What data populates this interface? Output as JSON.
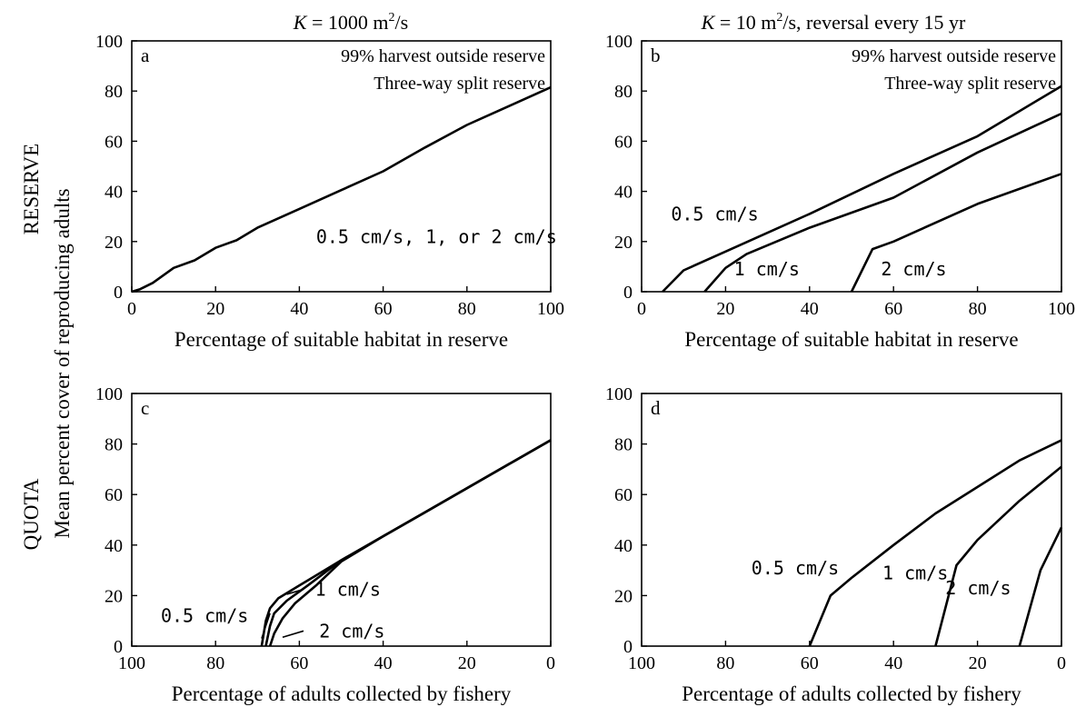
{
  "col_titles": {
    "left": {
      "italic": "K",
      "rest": " = 1000 m",
      "sup": "2",
      "tail": "/s"
    },
    "right": {
      "italic": "K",
      "rest": " = 10 m",
      "sup": "2",
      "tail": "/s, reversal every 15 yr"
    }
  },
  "row_titles": {
    "top": "RESERVE",
    "bottom": "QUOTA"
  },
  "ylabel": "Mean percent cover of reproducing adults",
  "chart_data": [
    {
      "id": "a",
      "type": "line",
      "panel_label": "a",
      "annotations": [
        "99% harvest outside reserve",
        "Three-way split reserve"
      ],
      "xlabel": "Percentage of suitable habitat in reserve",
      "xlim": [
        0,
        100
      ],
      "ylim": [
        0,
        100
      ],
      "xticks": [
        0,
        20,
        40,
        60,
        80,
        100
      ],
      "yticks": [
        0,
        20,
        40,
        60,
        80,
        100
      ],
      "series": [
        {
          "name": "0.5 cm/s, 1, or 2 cm/s",
          "x": [
            0,
            2,
            5,
            10,
            15,
            20,
            25,
            30,
            40,
            50,
            60,
            70,
            80,
            90,
            100
          ],
          "y": [
            0,
            1,
            3.5,
            9.5,
            12.5,
            17.5,
            20.5,
            25.5,
            33,
            40.5,
            48,
            57.5,
            66.5,
            74,
            81.5
          ]
        }
      ]
    },
    {
      "id": "b",
      "type": "line",
      "panel_label": "b",
      "annotations": [
        "99% harvest outside reserve",
        "Three-way split reserve"
      ],
      "xlabel": "Percentage of suitable habitat in reserve",
      "xlim": [
        0,
        100
      ],
      "ylim": [
        0,
        100
      ],
      "xticks": [
        0,
        20,
        40,
        60,
        80,
        100
      ],
      "yticks": [
        0,
        20,
        40,
        60,
        80,
        100
      ],
      "series": [
        {
          "name": "0.5 cm/s",
          "x": [
            5,
            10,
            20,
            40,
            60,
            80,
            100
          ],
          "y": [
            0,
            8.5,
            16,
            31,
            47,
            62,
            82
          ]
        },
        {
          "name": "1 cm/s",
          "x": [
            15,
            20,
            25,
            40,
            60,
            80,
            100
          ],
          "y": [
            0,
            9.5,
            15,
            25.5,
            37.5,
            55.5,
            71
          ]
        },
        {
          "name": "2 cm/s",
          "x": [
            50,
            55,
            60,
            80,
            100
          ],
          "y": [
            0,
            17,
            20,
            35,
            47
          ]
        }
      ]
    },
    {
      "id": "c",
      "type": "line",
      "panel_label": "c",
      "annotations": [],
      "xlabel": "Percentage of adults collected by fishery",
      "xlim": [
        100,
        0
      ],
      "ylim": [
        0,
        100
      ],
      "xticks": [
        100,
        80,
        60,
        40,
        20,
        0
      ],
      "yticks": [
        0,
        20,
        40,
        60,
        80,
        100
      ],
      "series": [
        {
          "name": "0.5 cm/s",
          "x": [
            69,
            68,
            67,
            65,
            60,
            50,
            40,
            30,
            20,
            10,
            0
          ],
          "y": [
            0,
            10,
            15,
            19,
            24,
            34,
            43.5,
            53,
            62.5,
            72,
            81.5
          ]
        },
        {
          "name": "1 cm/s",
          "x": [
            68,
            67,
            66,
            63,
            58,
            50,
            40,
            30,
            20,
            10,
            0
          ],
          "y": [
            0,
            8,
            13,
            18,
            24,
            34,
            43.5,
            53,
            62.5,
            72,
            81.5
          ]
        },
        {
          "name": "2 cm/s",
          "x": [
            67,
            66,
            64,
            61,
            56,
            50,
            40,
            30,
            20,
            10,
            0
          ],
          "y": [
            0,
            5,
            11,
            17,
            24,
            33.5,
            43.5,
            53,
            62.5,
            72,
            81.5
          ]
        }
      ]
    },
    {
      "id": "d",
      "type": "line",
      "panel_label": "d",
      "annotations": [],
      "xlabel": "Percentage of adults collected by fishery",
      "xlim": [
        100,
        0
      ],
      "ylim": [
        0,
        100
      ],
      "xticks": [
        100,
        80,
        60,
        40,
        20,
        0
      ],
      "yticks": [
        0,
        20,
        40,
        60,
        80,
        100
      ],
      "series": [
        {
          "name": "0.5 cm/s",
          "x": [
            60,
            55,
            50,
            40,
            30,
            20,
            10,
            0
          ],
          "y": [
            0,
            20,
            27,
            40,
            52.5,
            63,
            73.5,
            81.5
          ]
        },
        {
          "name": "1 cm/s",
          "x": [
            30,
            25,
            20,
            10,
            0
          ],
          "y": [
            0,
            32,
            42,
            57.5,
            71
          ]
        },
        {
          "name": "2 cm/s",
          "x": [
            10,
            5,
            0
          ],
          "y": [
            0,
            30,
            47
          ]
        }
      ]
    }
  ]
}
